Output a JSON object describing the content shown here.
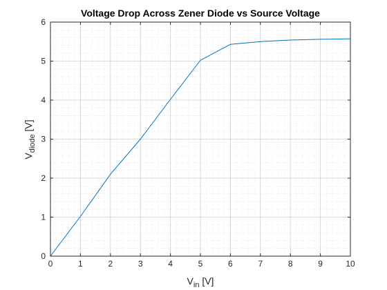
{
  "chart_data": {
    "type": "line",
    "title": "Voltage Drop Across Zener Diode vs Source Voltage",
    "xlabel": {
      "main": "V",
      "sub": "in",
      "suffix": " [V]"
    },
    "ylabel": {
      "main": "V",
      "sub": "diode",
      "suffix": " [V]"
    },
    "xlim": [
      0,
      10
    ],
    "ylim": [
      0,
      6
    ],
    "x_ticks": [
      "0",
      "1",
      "2",
      "3",
      "4",
      "5",
      "6",
      "7",
      "8",
      "9",
      "10"
    ],
    "y_ticks": [
      "0",
      "1",
      "2",
      "3",
      "4",
      "5",
      "6"
    ],
    "grid": true,
    "minor_grid": true,
    "series": [
      {
        "color": "#0072BD",
        "x": [
          0,
          1,
          2,
          3,
          4,
          5,
          6,
          7,
          8,
          9,
          10
        ],
        "y": [
          0,
          1.02,
          2.1,
          3.0,
          4.02,
          5.02,
          5.43,
          5.5,
          5.54,
          5.56,
          5.57
        ]
      }
    ]
  }
}
